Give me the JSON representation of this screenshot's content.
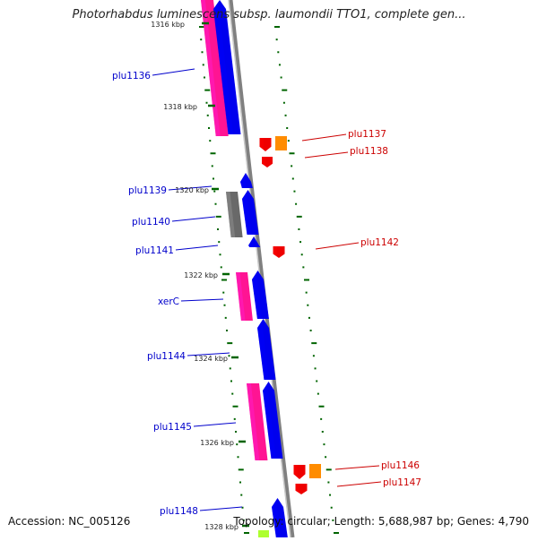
{
  "title": "Photorhabdus luminescens subsp. laumondii TTO1, complete gen...",
  "footer": {
    "accession": "Accession: NC_005126",
    "topology": "Topology: circular; Length: 5,688,987 bp; Genes: 4,790"
  },
  "colors": {
    "backbone": "#808080",
    "left_label": "#0000cc",
    "right_label": "#cc0000",
    "tick": "#006400",
    "magenta": "#ff1493",
    "blue": "#0000ee",
    "red": "#ee0000",
    "orange": "#ff8c00",
    "gray": "#696969",
    "lime": "#adff2f"
  },
  "ticks": [
    "1316 kbp",
    "1318 kbp",
    "1320 kbp",
    "1322 kbp",
    "1324 kbp",
    "1326 kbp",
    "1328 kbp"
  ],
  "genes_left": [
    "plu1136",
    "plu1139",
    "plu1140",
    "plu1141",
    "xerC",
    "plu1144",
    "plu1145",
    "plu1148"
  ],
  "genes_right": [
    "plu1137",
    "plu1138",
    "plu1142",
    "plu1146",
    "plu1147"
  ]
}
